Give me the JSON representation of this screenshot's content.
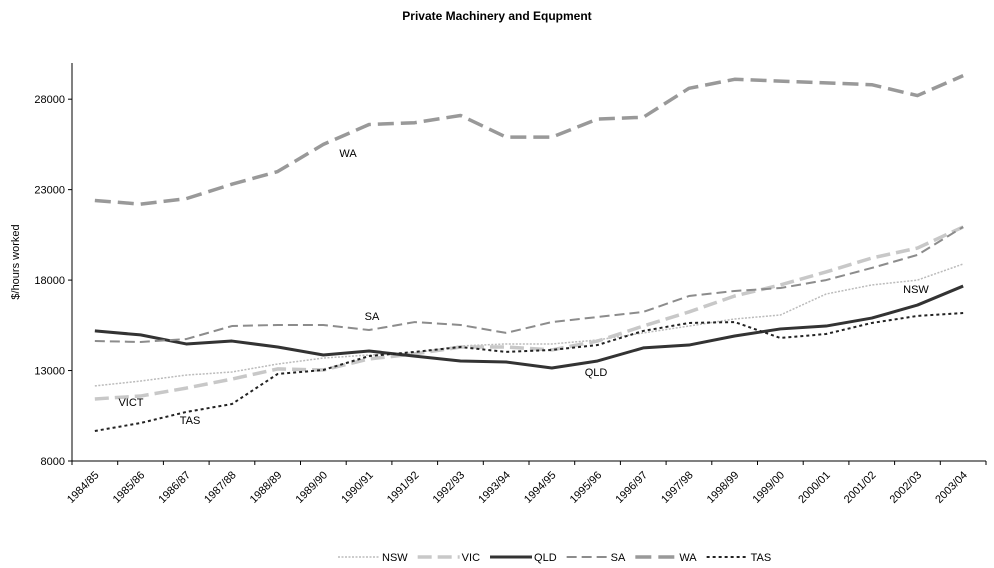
{
  "chart_data": {
    "type": "line",
    "title": "Private Machinery and Equpment",
    "y_label": "$/hours worked",
    "categories": [
      "1984/85",
      "1985/86",
      "1986/87",
      "1987/88",
      "1988/89",
      "1989/90",
      "1990/91",
      "1991/92",
      "1992/93",
      "1993/94",
      "1994/95",
      "1995/96",
      "1996/97",
      "1997/98",
      "1998/99",
      "1999/00",
      "2000/01",
      "2001/02",
      "2002/03",
      "2003/04"
    ],
    "ylim": [
      8000,
      30000
    ],
    "yticks": [
      8000,
      13000,
      18000,
      23000,
      28000
    ],
    "grid": false,
    "legend": "bottom",
    "series": [
      {
        "name": "NSW",
        "color": "#bbbbbb",
        "values": [
          12150,
          12420,
          12750,
          12920,
          13360,
          13690,
          13860,
          13970,
          14360,
          14470,
          14470,
          14690,
          15080,
          15460,
          15850,
          16070,
          17230,
          17730,
          18000,
          18890
        ]
      },
      {
        "name": "VIC",
        "color": "#c8c8c8",
        "values": [
          11430,
          11590,
          12030,
          12530,
          13090,
          13030,
          13640,
          13920,
          14300,
          14300,
          14140,
          14630,
          15460,
          16240,
          17120,
          17730,
          18450,
          19220,
          19770,
          20940
        ]
      },
      {
        "name": "QLD",
        "color": "#333333",
        "values": [
          15190,
          14970,
          14470,
          14630,
          14300,
          13860,
          14080,
          13800,
          13530,
          13470,
          13140,
          13530,
          14250,
          14410,
          14910,
          15300,
          15460,
          15900,
          16620,
          17670
        ]
      },
      {
        "name": "SA",
        "color": "#8c8c8c",
        "values": [
          14630,
          14580,
          14740,
          15460,
          15520,
          15520,
          15240,
          15680,
          15520,
          15080,
          15680,
          15960,
          16240,
          17120,
          17400,
          17560,
          18000,
          18670,
          19390,
          20940
        ]
      },
      {
        "name": "WA",
        "color": "#999999",
        "values": [
          22400,
          22200,
          22500,
          23300,
          24000,
          25500,
          26600,
          26700,
          27100,
          25900,
          25900,
          26900,
          27000,
          28600,
          29100,
          29000,
          28900,
          28800,
          28200,
          29300
        ]
      },
      {
        "name": "TAS",
        "color": "#222222",
        "values": [
          9660,
          10100,
          10710,
          11150,
          12810,
          13030,
          13800,
          14030,
          14300,
          14030,
          14140,
          14410,
          15190,
          15630,
          15680,
          14800,
          15020,
          15630,
          16020,
          16180
        ]
      }
    ],
    "annotations": [
      "WA",
      "SA",
      "VICT",
      "TAS",
      "QLD",
      "NSW"
    ]
  }
}
